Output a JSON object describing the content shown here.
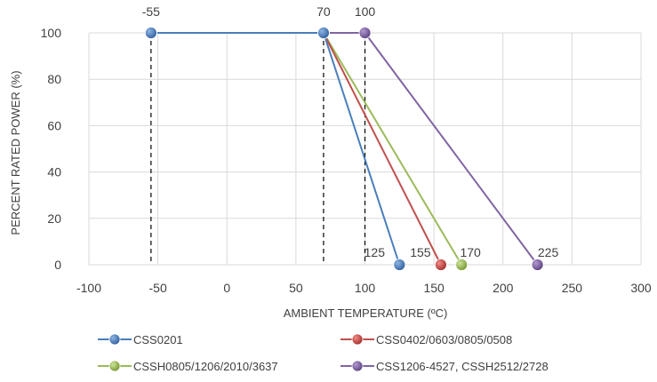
{
  "chart_data": {
    "type": "line",
    "title": "",
    "xlabel": "AMBIENT TEMPERATURE (ºC)",
    "ylabel": "PERCENT RATED POWER (%)",
    "xlim": [
      -100,
      300
    ],
    "ylim": [
      0,
      100
    ],
    "x_ticks": [
      -100,
      -50,
      0,
      50,
      100,
      150,
      200,
      250,
      300
    ],
    "y_ticks": [
      0,
      20,
      40,
      60,
      80,
      100
    ],
    "grid": "vertical and horizontal major gridlines",
    "legend_position": "bottom",
    "series": [
      {
        "name": "CSS0201",
        "color": "#4a7ebb",
        "x": [
          -55,
          70,
          125
        ],
        "y": [
          100,
          100,
          0
        ]
      },
      {
        "name": "CSS0402/0603/0805/0508",
        "color": "#c0504d",
        "x": [
          -55,
          70,
          155
        ],
        "y": [
          100,
          100,
          0
        ]
      },
      {
        "name": "CSSH0805/1206/2010/3637",
        "color": "#9bbb59",
        "x": [
          -55,
          70,
          170
        ],
        "y": [
          100,
          100,
          0
        ]
      },
      {
        "name": "CSS1206-4527, CSSH2512/2728",
        "color": "#8064a2",
        "x": [
          -55,
          70,
          100,
          225
        ],
        "y": [
          100,
          100,
          100,
          0
        ]
      }
    ],
    "reference_lines_x": [
      -55,
      70,
      100
    ],
    "annotations": [
      {
        "text": "-55",
        "x": -55,
        "y": 100
      },
      {
        "text": "70",
        "x": 70,
        "y": 100
      },
      {
        "text": "100",
        "x": 100,
        "y": 100
      },
      {
        "text": "125",
        "x": 125,
        "y": 0
      },
      {
        "text": "155",
        "x": 155,
        "y": 0
      },
      {
        "text": "170",
        "x": 170,
        "y": 0
      },
      {
        "text": "225",
        "x": 225,
        "y": 0
      }
    ]
  }
}
